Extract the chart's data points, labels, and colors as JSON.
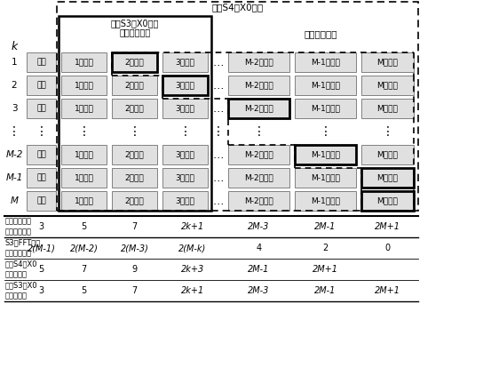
{
  "s4_label": "步骤S4中X0初值",
  "s3_label1": "步骤S3中X0初值",
  "s3_label2": "低次谐波部分",
  "high_label": "高次谐波部分",
  "k_label": "k",
  "row_labels": [
    "1",
    "2",
    "3",
    "⋮",
    "M-2",
    "M-1",
    "M"
  ],
  "col_low": [
    "均值",
    "1次谐波",
    "2次谐波",
    "3次谐波"
  ],
  "col_high": [
    "M-2次谐波",
    "M-1次谐波",
    "M次谐波"
  ],
  "bot_labels": [
    "优化方法得到\n的未知量个数",
    "S3中FFT得到\n的未知量个数",
    "步骤S4中X0\n元素的个数",
    "步骤S3中X0\n元素的个数"
  ],
  "bot_row1": [
    "3",
    "5",
    "7",
    "2k+1",
    "2M-3",
    "2M-1",
    "2M+1"
  ],
  "bot_row2": [
    "2(M-1)",
    "2(M-2)",
    "2(M-3)",
    "2(M-k)",
    "4",
    "2",
    "0"
  ],
  "bot_row3": [
    "5",
    "7",
    "9",
    "2k+3",
    "2M-1",
    "2M+1",
    ""
  ],
  "bot_row4": [
    "3",
    "5",
    "7",
    "2k+1",
    "2M-3",
    "2M-1",
    "2M+1"
  ]
}
